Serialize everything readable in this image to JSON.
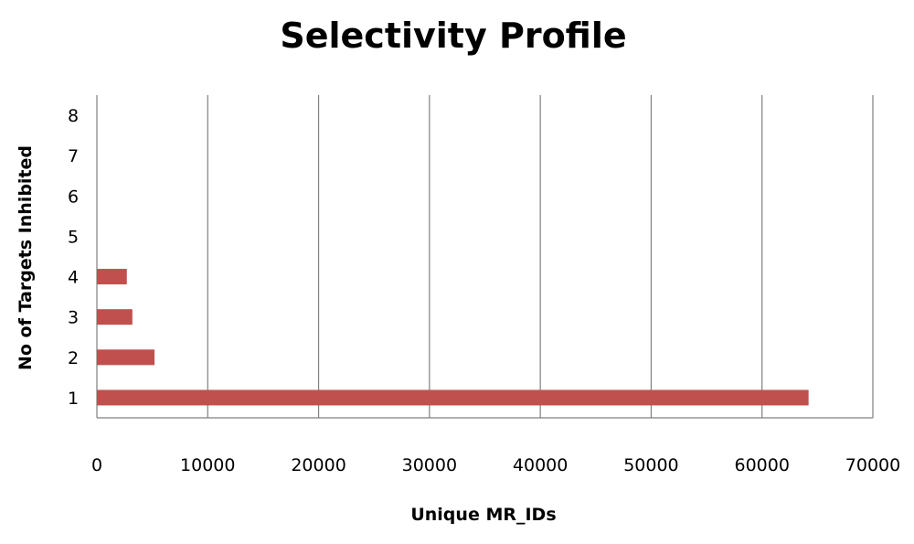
{
  "chart_data": {
    "type": "bar",
    "orientation": "horizontal",
    "title": "Selectivity Profile",
    "xlabel": "Unique MR_IDs",
    "ylabel": "No of Targets  Inhibited",
    "categories": [
      "1",
      "2",
      "3",
      "4",
      "5",
      "6",
      "7",
      "8"
    ],
    "values": [
      64200,
      5200,
      3200,
      2700,
      0,
      0,
      0,
      0
    ],
    "xlim": [
      0,
      70000
    ],
    "xticks": [
      0,
      10000,
      20000,
      30000,
      40000,
      50000,
      60000,
      70000
    ],
    "grid": "vertical",
    "legend": "none",
    "bar_color": "#C0504D"
  }
}
